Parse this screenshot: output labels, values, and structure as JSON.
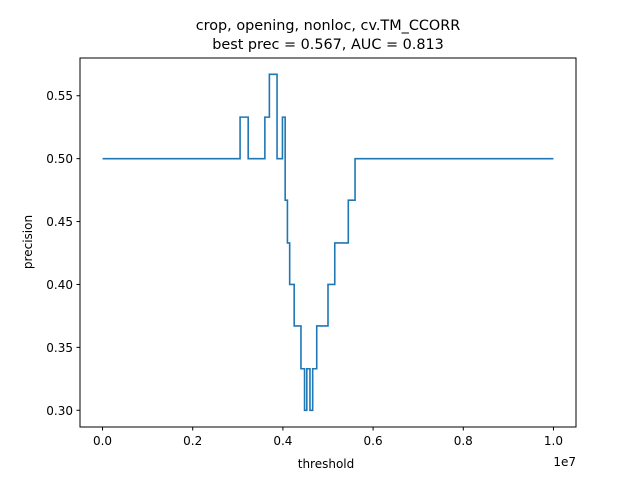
{
  "chart_data": {
    "type": "line",
    "title": "crop, opening, nonloc, cv.TM_CCORR",
    "subtitle": "best prec = 0.567, AUC = 0.813",
    "xlabel": "threshold",
    "ylabel": "precision",
    "x_offset_label": "1e7",
    "xlim": [
      -500000,
      10500000
    ],
    "ylim": [
      0.2867,
      0.58
    ],
    "x_ticks": [
      0,
      2000000,
      4000000,
      6000000,
      8000000,
      10000000
    ],
    "x_tick_labels": [
      "0.0",
      "0.2",
      "0.4",
      "0.6",
      "0.8",
      "1.0"
    ],
    "y_ticks": [
      0.3,
      0.35,
      0.4,
      0.45,
      0.5,
      0.55
    ],
    "y_tick_labels": [
      "0.30",
      "0.35",
      "0.40",
      "0.45",
      "0.50",
      "0.55"
    ],
    "grid": false,
    "series": [
      {
        "color": "#1f77b4",
        "step": "post",
        "x": [
          0,
          3050000,
          3230000,
          3600000,
          3700000,
          3870000,
          3990000,
          4050000,
          4100000,
          4150000,
          4250000,
          4400000,
          4480000,
          4530000,
          4600000,
          4660000,
          4750000,
          5000000,
          5150000,
          5450000,
          5600000,
          10000000
        ],
        "y": [
          0.5,
          0.533,
          0.5,
          0.533,
          0.567,
          0.5,
          0.533,
          0.467,
          0.433,
          0.4,
          0.367,
          0.333,
          0.3,
          0.333,
          0.3,
          0.333,
          0.367,
          0.4,
          0.433,
          0.467,
          0.5,
          0.5
        ]
      }
    ]
  }
}
